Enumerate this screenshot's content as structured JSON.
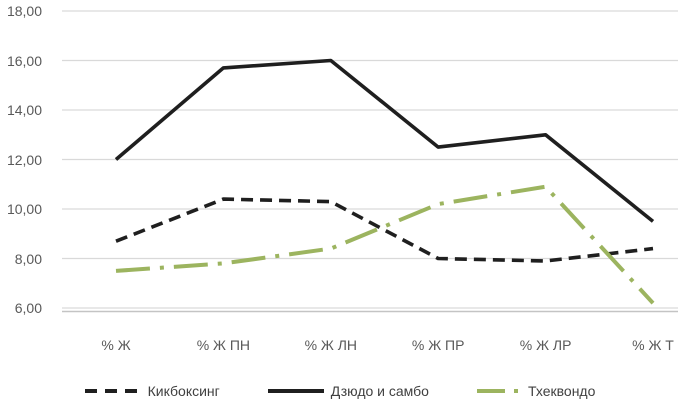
{
  "chart_data": {
    "type": "line",
    "title": "",
    "xlabel": "",
    "ylabel": "",
    "categories": [
      "% Ж",
      "% Ж ПН",
      "% Ж ЛН",
      "% Ж ПР",
      "% Ж ЛР",
      "% Ж Т"
    ],
    "series": [
      {
        "name": "Кикбоксинг",
        "values": [
          8.7,
          10.4,
          10.3,
          8.0,
          7.9,
          8.4
        ],
        "color": "#1f1f1f",
        "line_style": "dashed"
      },
      {
        "name": "Дзюдо и самбо",
        "values": [
          12.0,
          15.7,
          16.0,
          12.5,
          13.0,
          9.5
        ],
        "color": "#1f1f1f",
        "line_style": "solid"
      },
      {
        "name": "Тхеквондо",
        "values": [
          7.5,
          7.8,
          8.4,
          10.2,
          10.9,
          6.2
        ],
        "color": "#9cb45f",
        "line_style": "dashdot"
      }
    ],
    "yticks": [
      "18,00",
      "16,00",
      "14,00",
      "12,00",
      "10,00",
      "8,00",
      "6,00"
    ],
    "ytick_values": [
      18,
      16,
      14,
      12,
      10,
      8,
      6
    ],
    "ylim": [
      6,
      18
    ],
    "ytick_step": 2,
    "grid": true,
    "gridline_color": "#d9d9d9",
    "axis_line_color": "#c4c4c4",
    "axis_label_color": "#595959",
    "legend_text_color": "#404040",
    "legend_position": "bottom",
    "background": "#ffffff"
  }
}
